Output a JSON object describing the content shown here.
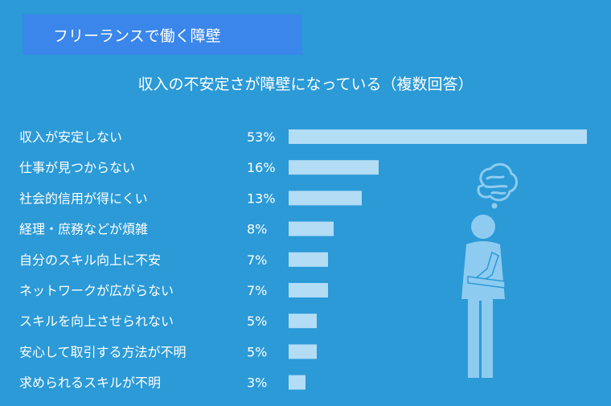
{
  "header": {
    "label": "フリーランスで働く障壁"
  },
  "chart_data": {
    "type": "bar",
    "orientation": "horizontal",
    "title": "収入の不安定さが障壁になっている（複数回答）",
    "categories": [
      "収入が安定しない",
      "仕事が見つからない",
      "社会的信用が得にくい",
      "経理・庶務などが煩雑",
      "自分のスキル向上に不安",
      "ネットワークが広がらない",
      "スキルを向上させられない",
      "安心して取引する方法が不明",
      "求められるスキルが不明"
    ],
    "values": [
      53,
      16,
      13,
      8,
      7,
      7,
      5,
      5,
      3
    ],
    "value_labels": [
      "53%",
      "16%",
      "13%",
      "8%",
      "7%",
      "7%",
      "5%",
      "5%",
      "3%"
    ],
    "unit": "%",
    "xlim": [
      0,
      53
    ],
    "grid": false,
    "legend": "none"
  },
  "colors": {
    "background": "#2b9ad7",
    "header": "#3a86ea",
    "bar": "#b3dcf5",
    "illustration": "#8ecbf0",
    "text": "#ffffff"
  },
  "illustration": {
    "icon": "worried-person-icon"
  }
}
